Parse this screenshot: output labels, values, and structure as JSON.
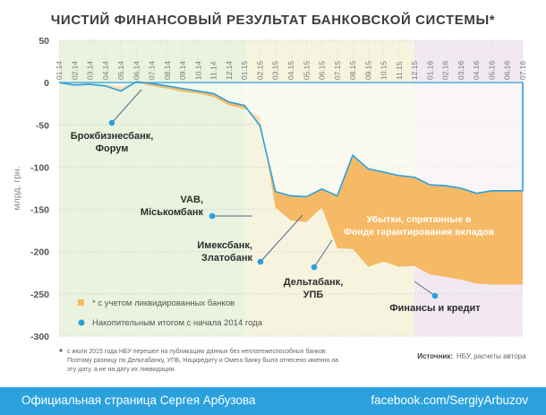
{
  "chart_data": {
    "type": "area",
    "title": "ЧИСТИЙ ФИНАНСОВЫЙ РЕЗУЛЬТАТ БАНКОВСКОЙ СИСТЕМЫ*",
    "ylabel": "млрд. грн.",
    "ylim": [
      -300,
      50
    ],
    "yticks": [
      50,
      0,
      -50,
      -100,
      -150,
      -200,
      -250,
      -300
    ],
    "categories": [
      "01.14",
      "02.14",
      "03.14",
      "04.14",
      "05.14",
      "06.14",
      "07.14",
      "08.14",
      "09.14",
      "10.14",
      "11.14",
      "12.14",
      "01.15",
      "02.15",
      "03.15",
      "04.15",
      "05.15",
      "06.15",
      "07.15",
      "08.15",
      "09.15",
      "10.15",
      "11.15",
      "12.15",
      "01.16",
      "02.16",
      "03.16",
      "04.16",
      "05.16",
      "06.16",
      "07.16"
    ],
    "period_bands": [
      {
        "from": 0,
        "to": 12,
        "color": "#e9f3df"
      },
      {
        "from": 12,
        "to": 23,
        "color": "#f6f4df"
      },
      {
        "from": 23,
        "to": 30,
        "color": "#f2e8f2"
      }
    ],
    "series": [
      {
        "name": "* с учетом ликвидированных банков",
        "color": "#f6b965",
        "values": [
          0,
          -1,
          -1,
          -2,
          -5,
          0,
          -4,
          -7,
          -11,
          -13,
          -17,
          -27,
          -31,
          -40,
          -148,
          -163,
          -165,
          -148,
          -196,
          -197,
          -218,
          -212,
          -218,
          -217,
          -227,
          -230,
          -233,
          -238,
          -239,
          -239,
          -239
        ]
      },
      {
        "name": "Накопительным итогом с начала 2014 года",
        "color": "#2aa1dd",
        "values": [
          0,
          -3,
          -2,
          -4,
          -10,
          1,
          -1,
          -4,
          -7,
          -10,
          -13,
          -23,
          -27,
          -51,
          -129,
          -134,
          -135,
          -126,
          -134,
          -86,
          -102,
          -106,
          -110,
          -112,
          -121,
          -122,
          -125,
          -131,
          -128,
          -128,
          -128
        ]
      }
    ],
    "annotations": [
      {
        "text": [
          "Брокбизнесбанк,",
          "Форум"
        ],
        "at": [
          5,
          1
        ]
      },
      {
        "text": [
          "VAB,",
          "Міськомбанк"
        ],
        "at": [
          13,
          -148
        ]
      },
      {
        "text": [
          "Имексбанк,",
          "Златобанк"
        ],
        "at": [
          17,
          -160
        ]
      },
      {
        "text": [
          "Дельтабанк,",
          "УПБ"
        ],
        "at": [
          18,
          -197
        ]
      },
      {
        "text": [
          "Финансы и кредит"
        ],
        "at": [
          23,
          -227
        ]
      }
    ],
    "area_label": [
      "Убытки, спрятанные в",
      "Фонде гарантирования вкладов"
    ],
    "legend": [
      {
        "marker": "square",
        "color": "#f6b965",
        "label": "* с учетом ликвидированных банков"
      },
      {
        "marker": "circle",
        "color": "#2aa1dd",
        "label": "Накопительным итогом с начала 2014 года"
      }
    ],
    "note": [
      "с июля 2015 года НБУ перешел на публикацию данных без неплатежеспособных банков.",
      "Поэтому разницу по Дельтабанку, УПБ, Нацкредиту и Омега банку было отнесено именно на",
      "эту дату, а не на дату их ликвидации."
    ],
    "source_label": "Источник:",
    "source_text": "НБУ, расчеты автора"
  },
  "footer": {
    "left": "Официальная страница Сергея Арбузова",
    "right": "facebook.com/SergiyArbuzov"
  }
}
